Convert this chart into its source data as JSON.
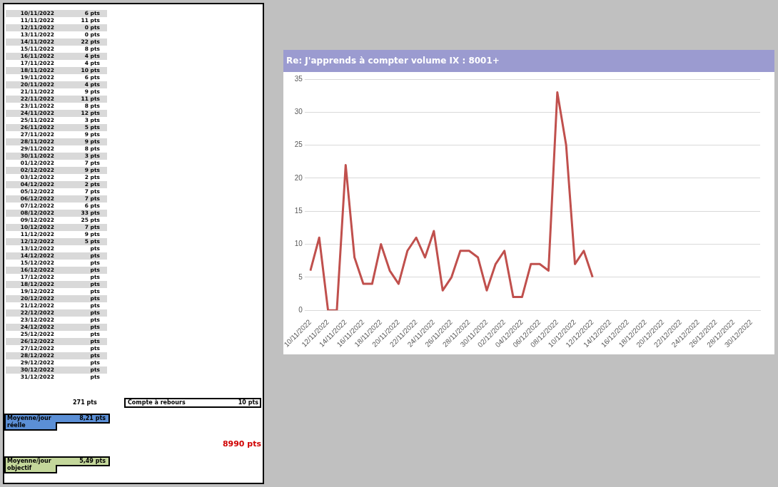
{
  "chart_data": [
    {
      "type": "other",
      "annotations": [
        "10/11/2022",
        "6 pts",
        "11/11/2022",
        "11 pts",
        "12/11/2022",
        "0 pts",
        "13/11/2022",
        "0 pts",
        "14/11/2022",
        "22 pts",
        "15/11/2022",
        "8 pts",
        "16/11/2022",
        "4 pts",
        "17/11/2022",
        "4 pts",
        "18/11/2022",
        "10 pts",
        "19/11/2022",
        "6 pts",
        "20/11/2022",
        "4 pts",
        "21/11/2022",
        "9 pts",
        "22/11/2022",
        "11 pts",
        "23/11/2022",
        "8 pts",
        "24/11/2022",
        "12 pts",
        "25/11/2022",
        "3 pts",
        "26/11/2022",
        "5 pts",
        "27/11/2022",
        "9 pts",
        "28/11/2022",
        "9 pts",
        "29/11/2022",
        "8 pts",
        "30/11/2022",
        "3 pts",
        "01/12/2022",
        "7 pts",
        "02/12/2022",
        "9 pts",
        "03/12/2022",
        "2 pts",
        "04/12/2022",
        "2 pts",
        "05/12/2022",
        "7 pts",
        "06/12/2022",
        "7 pts",
        "07/12/2022",
        "6 pts",
        "08/12/2022",
        "33 pts",
        "09/12/2022",
        "25 pts",
        "10/12/2022",
        "7 pts",
        "11/12/2022",
        "9 pts",
        "12/12/2022",
        "5 pts",
        "13/12/2022",
        "pts",
        "14/12/2022",
        "pts",
        "15/12/2022",
        "pts",
        "16/12/2022",
        "pts",
        "17/12/2022",
        "pts",
        "18/12/2022",
        "pts",
        "19/12/2022",
        "pts",
        "20/12/2022",
        "pts",
        "21/12/2022",
        "pts",
        "22/12/2022",
        "pts",
        "23/12/2022",
        "pts",
        "24/12/2022",
        "pts",
        "25/12/2022",
        "pts",
        "26/12/2022",
        "pts",
        "27/12/2022",
        "pts",
        "28/12/2022",
        "pts",
        "29/12/2022",
        "pts",
        "30/12/2022",
        "pts",
        "31/12/2022",
        "pts",
        "271 pts",
        "Compte à rebours",
        "10 pts",
        "Moyenne/jour réelle",
        "8,21 pts",
        "8990 pts",
        "Moyenne/jour objectif",
        "5,49 pts"
      ]
    },
    {
      "type": "line",
      "title": "Re: J'apprends à compter volume IX : 8001+",
      "categories": [
        "10/11/2022",
        null,
        "12/11/2022",
        null,
        "14/11/2022",
        null,
        "16/11/2022",
        null,
        "18/11/2022",
        null,
        "20/11/2022",
        null,
        "22/11/2022",
        null,
        "24/11/2022",
        null,
        "26/11/2022",
        null,
        "28/11/2022",
        null,
        "30/11/2022",
        null,
        "02/12/2022",
        null,
        "04/12/2022",
        null,
        "06/12/2022",
        null,
        "08/12/2022",
        null,
        "10/12/2022",
        null,
        "12/12/2022",
        null,
        "14/12/2022",
        null,
        "16/12/2022",
        null,
        "18/12/2022",
        null,
        "20/12/2022",
        null,
        "22/12/2022",
        null,
        "24/12/2022",
        null,
        "26/12/2022",
        null,
        "28/12/2022",
        null,
        "30/12/2022",
        null
      ],
      "values": [
        6,
        11,
        0,
        0,
        22,
        8,
        4,
        4,
        10,
        6,
        4,
        9,
        11,
        8,
        12,
        3,
        5,
        9,
        9,
        8,
        3,
        7,
        9,
        2,
        2,
        7,
        7,
        6,
        33,
        25,
        7,
        9,
        5,
        null,
        null,
        null,
        null,
        null,
        null,
        null,
        null,
        null,
        null,
        null,
        null,
        null,
        null,
        null,
        null,
        null,
        null,
        null
      ],
      "color": "#c0504d",
      "ylim": [
        0,
        35
      ],
      "yticks": [
        0,
        5,
        10,
        15,
        20,
        25,
        30,
        35
      ],
      "grid": "y",
      "legend": false
    }
  ]
}
